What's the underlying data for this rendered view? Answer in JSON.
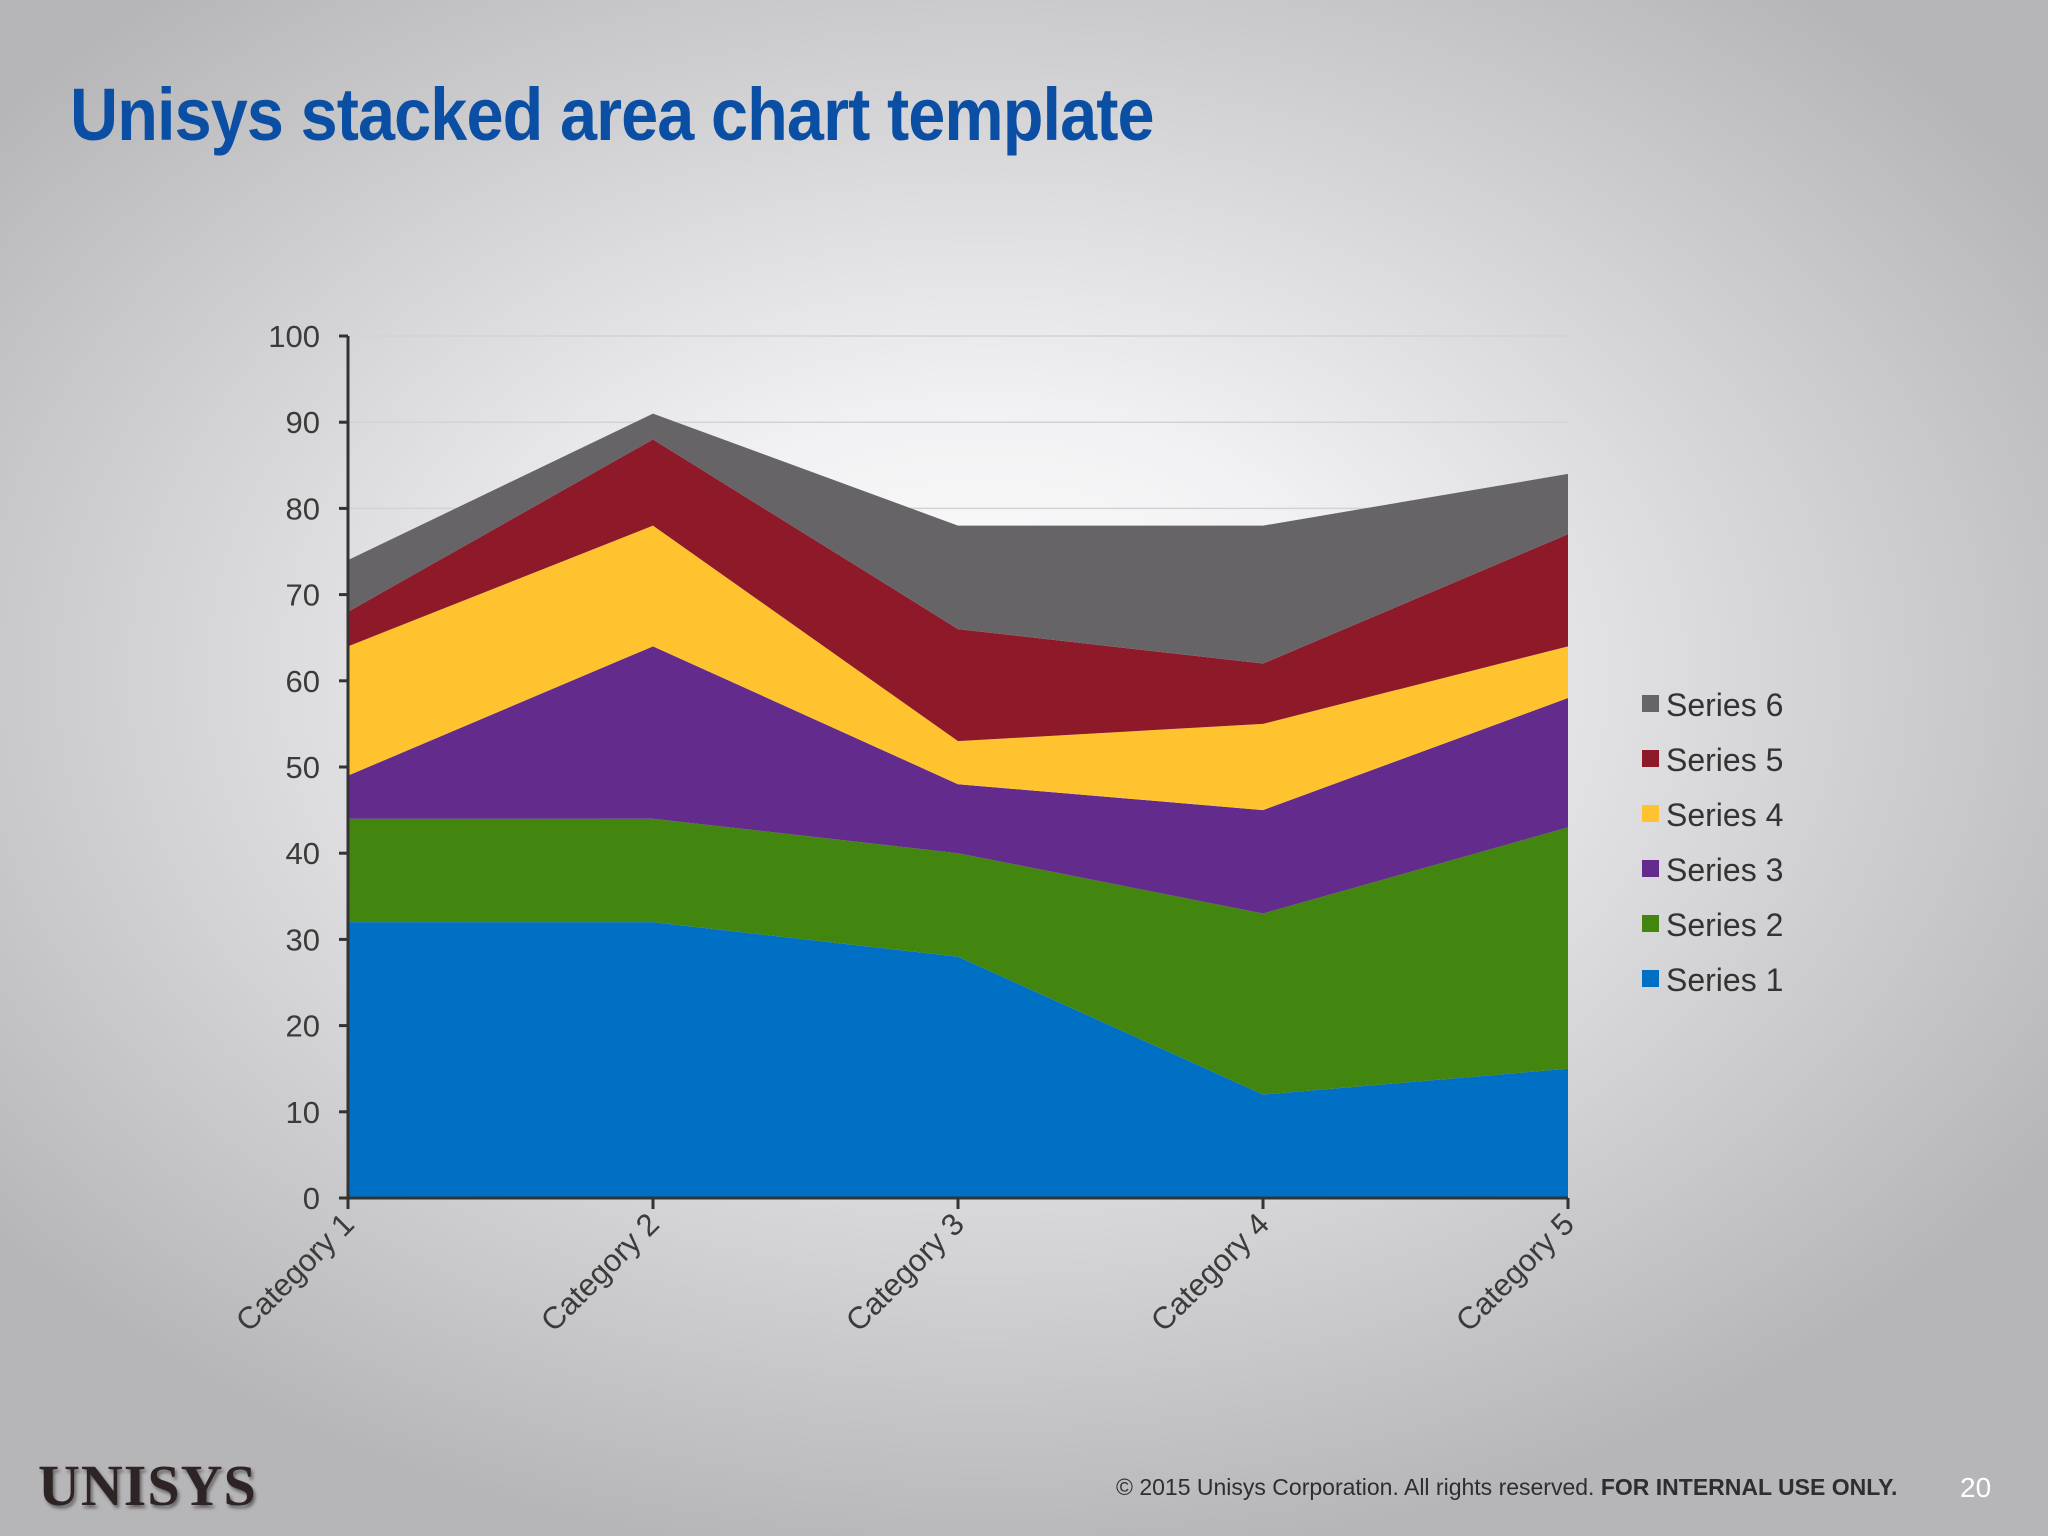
{
  "slide": {
    "title": "Unisys stacked area chart template",
    "logo": "UNISYS",
    "footer_text": "© 2015 Unisys Corporation. All rights reserved.",
    "footer_strong": "FOR INTERNAL USE ONLY.",
    "page_number": "20"
  },
  "chart_data": {
    "type": "area",
    "stacked": true,
    "title": "",
    "xlabel": "",
    "ylabel": "",
    "categories": [
      "Category 1",
      "Category 2",
      "Category 3",
      "Category 4",
      "Category 5"
    ],
    "ylim": [
      0,
      100
    ],
    "yticks": [
      0,
      10,
      20,
      30,
      40,
      50,
      60,
      70,
      80,
      90,
      100
    ],
    "grid": true,
    "legend_position": "right",
    "series": [
      {
        "name": "Series 1",
        "color": "#0070c4",
        "values": [
          32,
          32,
          28,
          12,
          15
        ]
      },
      {
        "name": "Series 2",
        "color": "#42860f",
        "values": [
          12,
          12,
          12,
          21,
          28
        ]
      },
      {
        "name": "Series 3",
        "color": "#622b8c",
        "values": [
          5,
          20,
          8,
          12,
          15
        ]
      },
      {
        "name": "Series 4",
        "color": "#ffc330",
        "values": [
          15,
          14,
          5,
          10,
          6
        ]
      },
      {
        "name": "Series 5",
        "color": "#8e1928",
        "values": [
          4,
          10,
          13,
          7,
          13
        ]
      },
      {
        "name": "Series 6",
        "color": "#676468",
        "values": [
          6,
          3,
          12,
          16,
          7
        ]
      }
    ]
  }
}
